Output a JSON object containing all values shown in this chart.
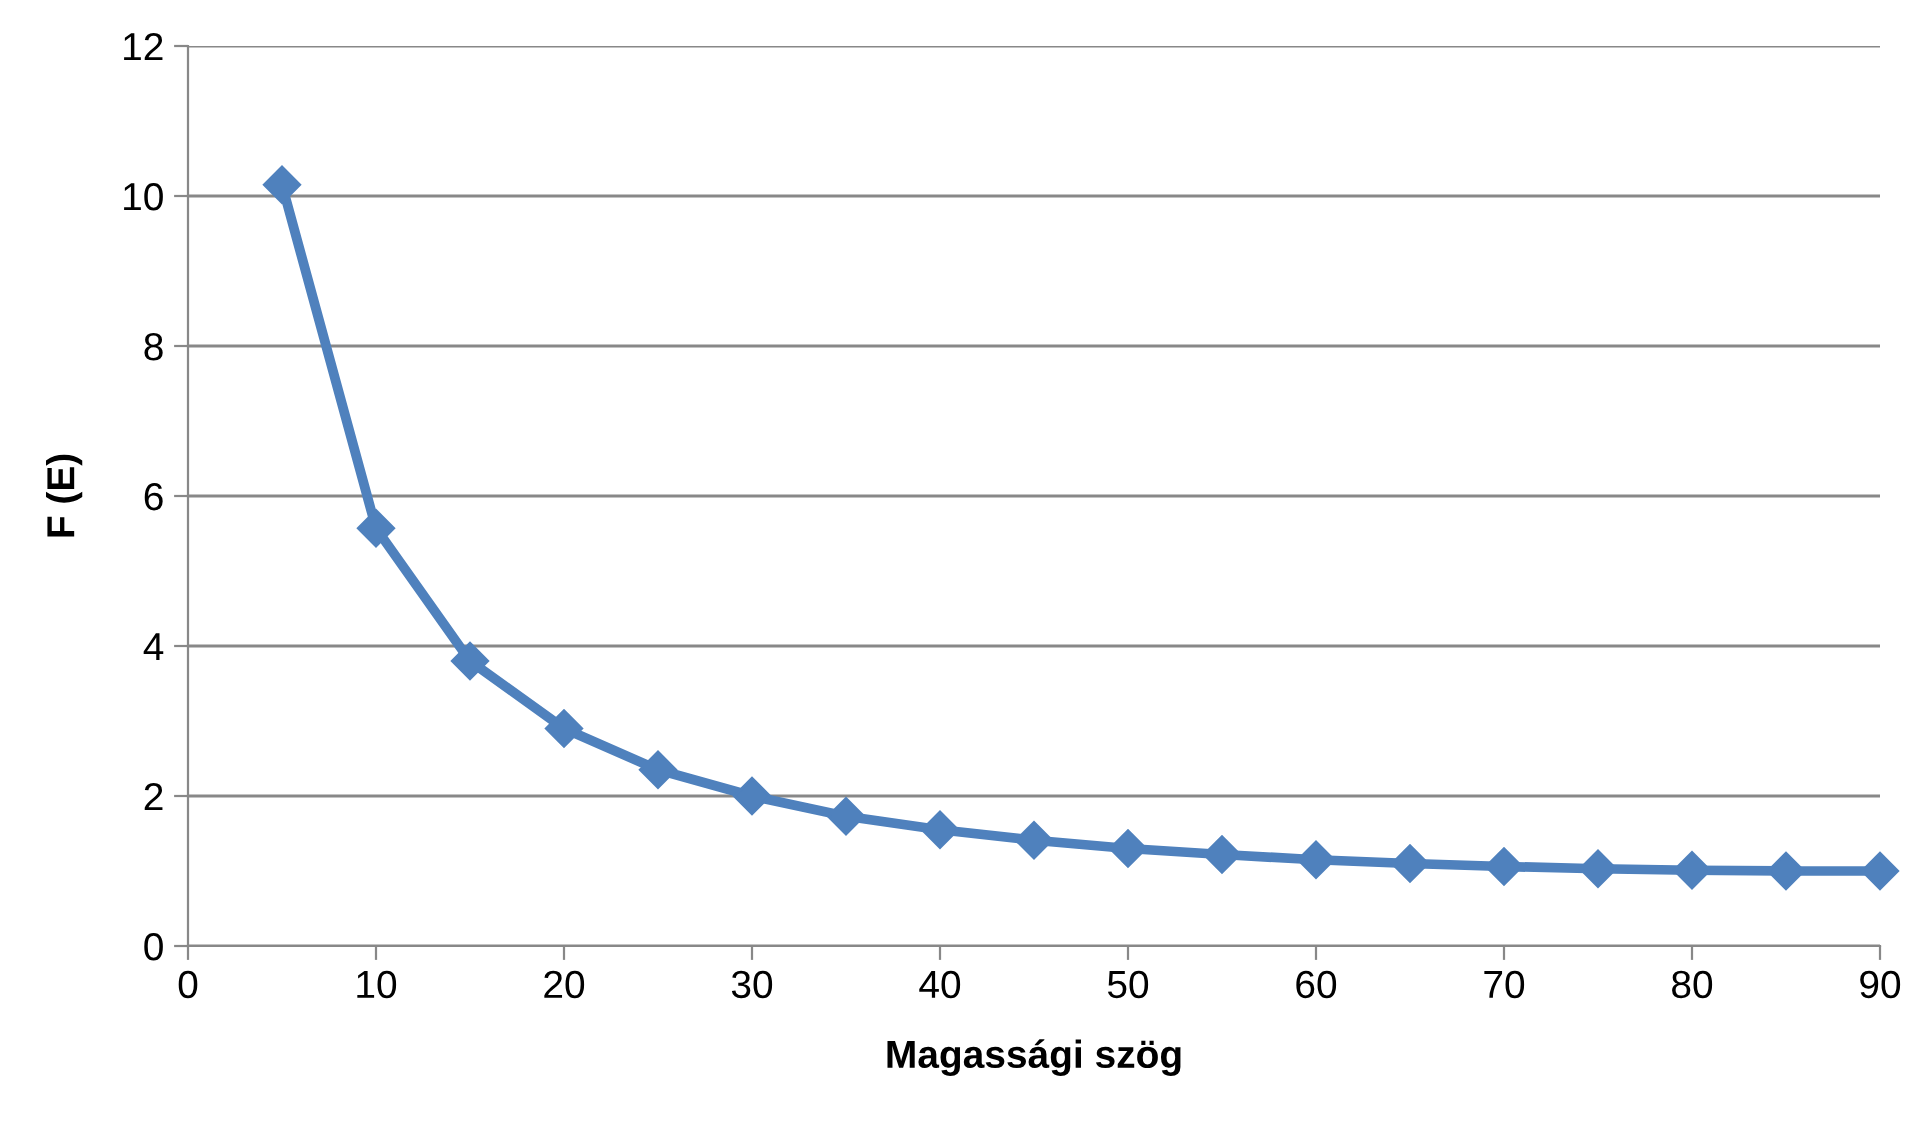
{
  "chart_data": {
    "type": "line",
    "xlabel": "Magassági szög",
    "ylabel": "F (E)",
    "x": [
      5,
      10,
      15,
      20,
      25,
      30,
      35,
      40,
      45,
      50,
      55,
      60,
      65,
      70,
      75,
      80,
      85,
      90
    ],
    "series": [
      {
        "color": "#4f81bd",
        "values": [
          10.15,
          5.57,
          3.8,
          2.9,
          2.35,
          2.0,
          1.73,
          1.55,
          1.41,
          1.3,
          1.22,
          1.15,
          1.1,
          1.06,
          1.03,
          1.01,
          1.0,
          1.0
        ]
      }
    ],
    "xlim": [
      0,
      90
    ],
    "ylim": [
      0,
      12
    ],
    "xticks": [
      0,
      10,
      20,
      30,
      40,
      50,
      60,
      70,
      80,
      90
    ],
    "yticks": [
      0,
      2,
      4,
      6,
      8,
      10,
      12
    ],
    "grid": "y",
    "marker": "diamond",
    "line_style": "solid"
  }
}
